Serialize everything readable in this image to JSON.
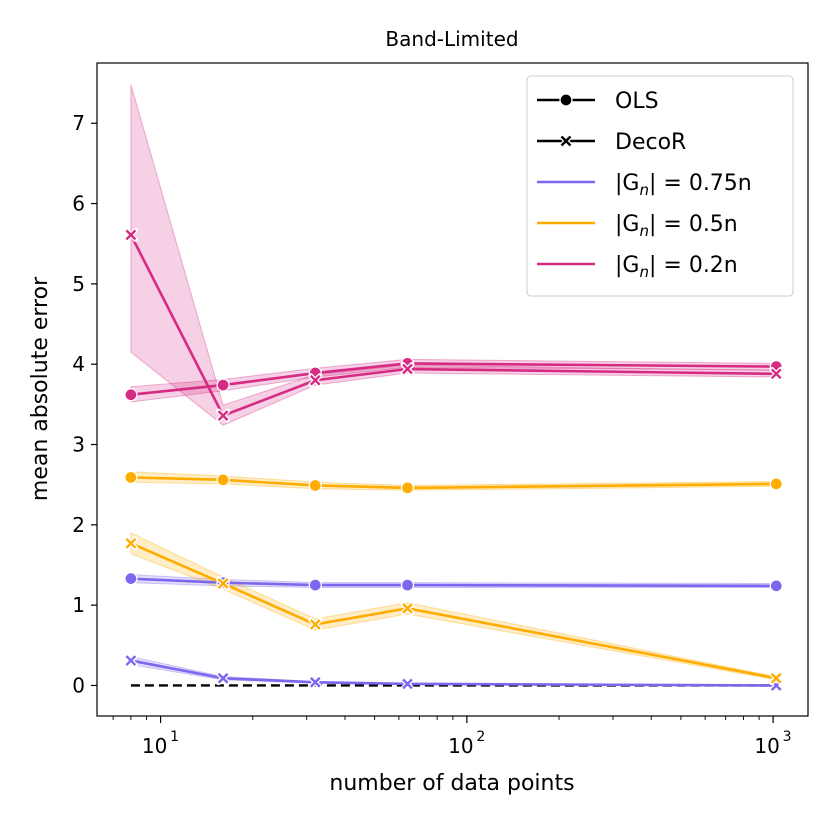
{
  "chart_data": {
    "type": "line",
    "title": "Band-Limited",
    "xlabel": "number of data points",
    "ylabel": "mean absolute error",
    "xscale": "log",
    "x": [
      8,
      16,
      32,
      64,
      1024
    ],
    "xlim": [
      6.2,
      1300
    ],
    "ylim": [
      -0.38,
      7.75
    ],
    "yticks": [
      0,
      1,
      2,
      3,
      4,
      5,
      6,
      7
    ],
    "ytick_labels": [
      "0",
      "1",
      "2",
      "3",
      "4",
      "5",
      "6",
      "7"
    ],
    "xticks": [
      10,
      100,
      1000
    ],
    "xtick_labels": [
      "10",
      "10",
      "10"
    ],
    "xtick_exponents": [
      "1",
      "2",
      "3"
    ],
    "grid": false,
    "legend_position": "top-right",
    "legend": [
      {
        "label": "OLS",
        "kind": "marker-dot",
        "color": "#000000"
      },
      {
        "label": "DecoR",
        "kind": "marker-x",
        "color": "#000000"
      },
      {
        "label_prefix": "|G",
        "label_sub": "n",
        "label_suffix": "| = 0.75n",
        "kind": "line",
        "color": "#7b68ee"
      },
      {
        "label_prefix": "|G",
        "label_sub": "n",
        "label_suffix": "| = 0.5n",
        "kind": "line",
        "color": "#ffac00"
      },
      {
        "label_prefix": "|G",
        "label_sub": "n",
        "label_suffix": "| = 0.2n",
        "kind": "line",
        "color": "#d62b84"
      }
    ],
    "series": [
      {
        "name": "OLS |Gn|=0.75n",
        "color": "#7b68ee",
        "marker": "o",
        "values": [
          1.33,
          1.28,
          1.25,
          1.25,
          1.24
        ],
        "lower": [
          1.28,
          1.24,
          1.22,
          1.22,
          1.22
        ],
        "upper": [
          1.38,
          1.32,
          1.28,
          1.28,
          1.27
        ]
      },
      {
        "name": "DecoR |Gn|=0.75n",
        "color": "#7b68ee",
        "marker": "x",
        "values": [
          0.31,
          0.09,
          0.04,
          0.02,
          0.0
        ],
        "lower": [
          0.26,
          0.07,
          0.03,
          0.01,
          0.0
        ],
        "upper": [
          0.36,
          0.11,
          0.05,
          0.03,
          0.01
        ]
      },
      {
        "name": "OLS |Gn|=0.5n",
        "color": "#ffac00",
        "marker": "o",
        "values": [
          2.59,
          2.56,
          2.49,
          2.46,
          2.51
        ],
        "lower": [
          2.53,
          2.51,
          2.45,
          2.43,
          2.48
        ],
        "upper": [
          2.66,
          2.61,
          2.53,
          2.49,
          2.54
        ]
      },
      {
        "name": "DecoR |Gn|=0.5n",
        "color": "#ffac00",
        "marker": "x",
        "values": [
          1.77,
          1.27,
          0.76,
          0.96,
          0.09
        ],
        "lower": [
          1.64,
          1.2,
          0.69,
          0.89,
          0.07
        ],
        "upper": [
          1.9,
          1.35,
          0.83,
          1.03,
          0.11
        ]
      },
      {
        "name": "OLS |Gn|=0.2n",
        "color": "#d62b84",
        "marker": "o",
        "values": [
          3.62,
          3.74,
          3.89,
          4.01,
          3.97
        ],
        "lower": [
          3.53,
          3.67,
          3.84,
          3.96,
          3.93
        ],
        "upper": [
          3.72,
          3.81,
          3.95,
          4.06,
          4.01
        ]
      },
      {
        "name": "DecoR |Gn|=0.2n",
        "color": "#d62b84",
        "marker": "x",
        "values": [
          5.61,
          3.36,
          3.8,
          3.94,
          3.88
        ],
        "lower": [
          4.15,
          3.24,
          3.74,
          3.89,
          3.84
        ],
        "upper": [
          7.48,
          3.49,
          3.87,
          3.99,
          3.92
        ]
      }
    ],
    "reference_line": {
      "y": 0,
      "style": "dashed",
      "color": "#000000",
      "x_from": 8,
      "x_to": 1024
    }
  }
}
